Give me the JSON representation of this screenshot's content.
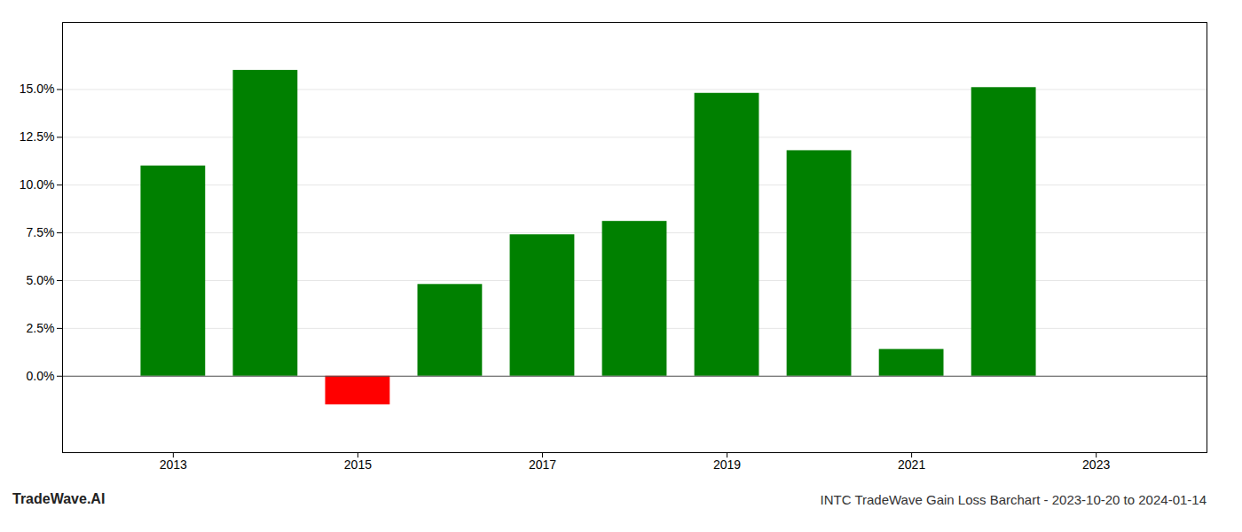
{
  "chart_data": {
    "type": "bar",
    "title": "INTC TradeWave Gain Loss Barchart - 2023-10-20 to 2024-01-14",
    "annotations": [
      "TradeWave.AI"
    ],
    "x": [
      2013,
      2014,
      2015,
      2016,
      2017,
      2018,
      2019,
      2020,
      2021,
      2022
    ],
    "values": [
      0.11,
      0.16,
      -0.015,
      0.048,
      0.074,
      0.081,
      0.148,
      0.118,
      0.014,
      0.151
    ],
    "colors": [
      "#008000",
      "#008000",
      "#ff0000",
      "#008000",
      "#008000",
      "#008000",
      "#008000",
      "#008000",
      "#008000",
      "#008000"
    ],
    "xlim": [
      2011.8,
      2024.2
    ],
    "xticks": [
      2013,
      2015,
      2017,
      2019,
      2021,
      2023
    ],
    "ylim": [
      -0.04,
      0.185
    ],
    "yticks": [
      {
        "value": 0.0,
        "label": "0.0%"
      },
      {
        "value": 0.025,
        "label": "2.5%"
      },
      {
        "value": 0.05,
        "label": "5.0%"
      },
      {
        "value": 0.075,
        "label": "7.5%"
      },
      {
        "value": 0.1,
        "label": "10.0%"
      },
      {
        "value": 0.125,
        "label": "12.5%"
      },
      {
        "value": 0.15,
        "label": "15.0%"
      }
    ],
    "grid": true
  }
}
